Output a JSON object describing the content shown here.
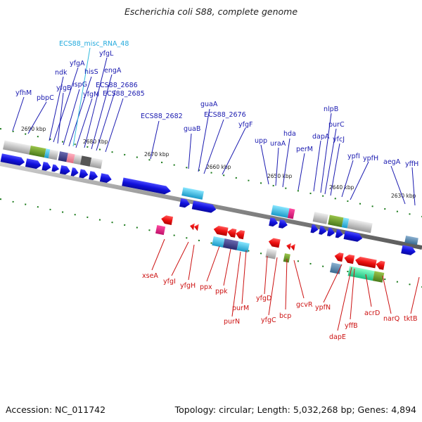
{
  "title": "Escherichia coli S88, complete genome",
  "footer": {
    "accession": "Accession: NC_011742",
    "summary": "Topology: circular; Length: 5,032,268 bp; Genes: 4,894"
  },
  "colors": {
    "forward_strand": "#1111dd",
    "reverse_strand": "#ee1111",
    "rna": "#33bbdd",
    "backbone": "#8a8a8a",
    "tick": "#1a7a1a",
    "forward_label": "#1a1ab0",
    "reverse_label": "#cc1111",
    "rna_label": "#22aadd"
  },
  "kbp_ticks": [
    {
      "label": "2690 kbp"
    },
    {
      "label": "2680 kbp"
    },
    {
      "label": "2670 kbp"
    },
    {
      "label": "2660 kbp"
    },
    {
      "label": "2650 kbp"
    },
    {
      "label": "2640 kbp"
    },
    {
      "label": "2630 kbp"
    }
  ],
  "forward_labels": [
    {
      "name": "yfhM"
    },
    {
      "name": "pbpC"
    },
    {
      "name": "ndk"
    },
    {
      "name": "yfgA"
    },
    {
      "name": "yfgB"
    },
    {
      "name": "ispG"
    },
    {
      "name": "hisS"
    },
    {
      "name": "yfgM"
    },
    {
      "name": "yfgL"
    },
    {
      "name": "engA"
    },
    {
      "name": "ECS88_2686"
    },
    {
      "name": "ECS88_2685"
    },
    {
      "name": "ECS88_2682"
    },
    {
      "name": "guaB"
    },
    {
      "name": "guaA"
    },
    {
      "name": "ECS88_2676"
    },
    {
      "name": "yfgF"
    },
    {
      "name": "upp"
    },
    {
      "name": "uraA"
    },
    {
      "name": "hda"
    },
    {
      "name": "perM"
    },
    {
      "name": "dapA"
    },
    {
      "name": "nlpB"
    },
    {
      "name": "purC"
    },
    {
      "name": "yfcJ"
    },
    {
      "name": "ypfI"
    },
    {
      "name": "ypfH"
    },
    {
      "name": "aegA"
    },
    {
      "name": "yffH"
    }
  ],
  "rna_labels": [
    {
      "name": "ECS88_misc_RNA_48"
    }
  ],
  "reverse_labels": [
    {
      "name": "xseA"
    },
    {
      "name": "yfgI"
    },
    {
      "name": "yfgH"
    },
    {
      "name": "ppx"
    },
    {
      "name": "ppk"
    },
    {
      "name": "purM"
    },
    {
      "name": "purN"
    },
    {
      "name": "yfgD"
    },
    {
      "name": "yfgC"
    },
    {
      "name": "bcp"
    },
    {
      "name": "gcvR"
    },
    {
      "name": "ypfN"
    },
    {
      "name": "dapE"
    },
    {
      "name": "yffB"
    },
    {
      "name": "acrD"
    },
    {
      "name": "narQ"
    },
    {
      "name": "tktB"
    }
  ]
}
